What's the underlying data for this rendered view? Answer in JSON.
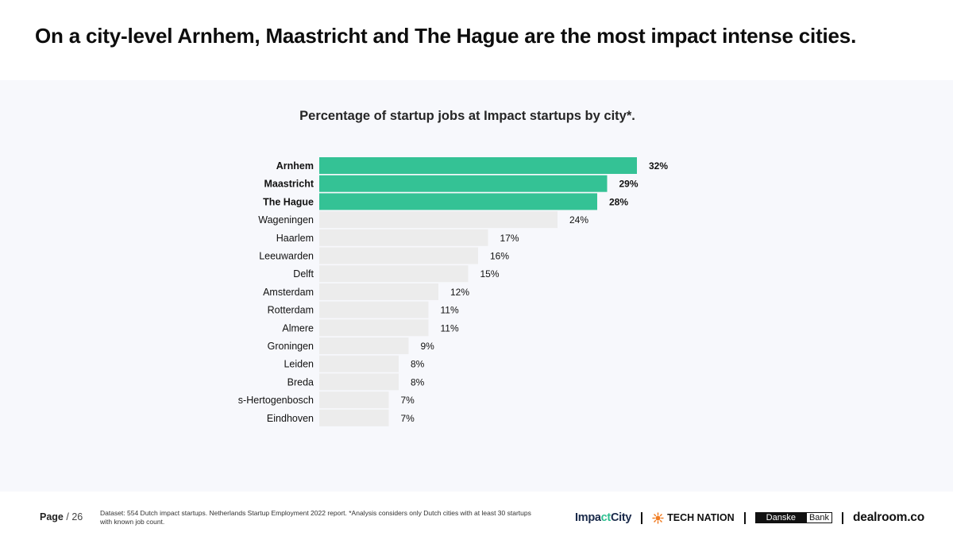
{
  "page_title": "On a city-level Arnhem, Maastricht and The Hague are the most impact intense cities.",
  "colors": {
    "highlight": "#34c295",
    "bar": "#ececec",
    "text": "#111111"
  },
  "chart_data": {
    "type": "bar",
    "orientation": "horizontal",
    "title": "Percentage of startup jobs at Impact startups by city*.",
    "categories": [
      "Arnhem",
      "Maastricht",
      "The Hague",
      "Wageningen",
      "Haarlem",
      "Leeuwarden",
      "Delft",
      "Amsterdam",
      "Rotterdam",
      "Almere",
      "Groningen",
      "Leiden",
      "Breda",
      "s-Hertogenbosch",
      "Eindhoven"
    ],
    "values": [
      32,
      29,
      28,
      24,
      17,
      16,
      15,
      12,
      11,
      11,
      9,
      8,
      8,
      7,
      7
    ],
    "value_labels": [
      "32%",
      "29%",
      "28%",
      "24%",
      "17%",
      "16%",
      "15%",
      "12%",
      "11%",
      "11%",
      "9%",
      "8%",
      "8%",
      "7%",
      "7%"
    ],
    "highlighted": [
      true,
      true,
      true,
      false,
      false,
      false,
      false,
      false,
      false,
      false,
      false,
      false,
      false,
      false,
      false
    ],
    "xlim": [
      0,
      32
    ],
    "unit": "%"
  },
  "footer": {
    "page_label": "Page",
    "page_total": "/ 26",
    "note": "Dataset: 554 Dutch impact startups. Netherlands Startup Employment 2022 report. *Analysis considers only Dutch cities with at least 30 startups with known job count.",
    "logos": {
      "impactcity_a": "Impa",
      "impactcity_b": "ct",
      "impactcity_c": "City",
      "technation": "TECH NATION",
      "danske_a": "Danske",
      "danske_b": "Bank",
      "dealroom": "dealroom.co"
    }
  }
}
